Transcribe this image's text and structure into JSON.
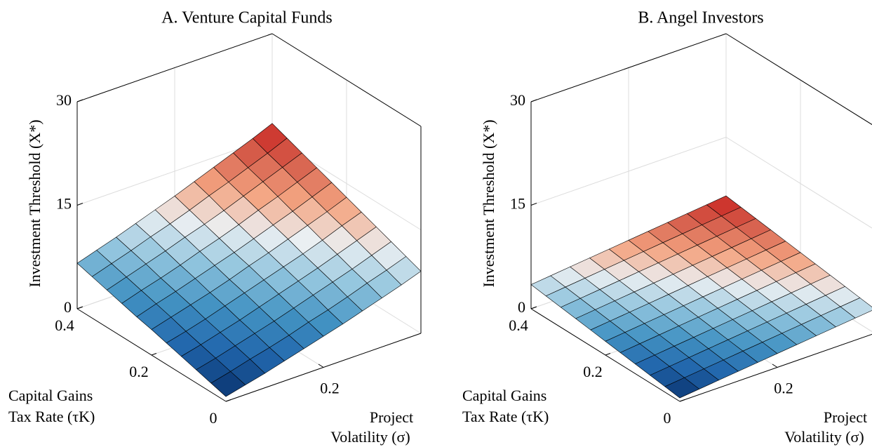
{
  "chart_data": [
    {
      "type": "surface",
      "title": "A. Venture Capital Funds",
      "xlabel": [
        "Project",
        "Volatility (σ)"
      ],
      "ylabel": [
        "Capital Gains",
        "Tax Rate (τK)"
      ],
      "zlabel": "Investment Threshold (X*)",
      "x": [
        0,
        0.04,
        0.08,
        0.12,
        0.16,
        0.2,
        0.24,
        0.28,
        0.32,
        0.36,
        0.4
      ],
      "y": [
        0,
        0.04,
        0.08,
        0.12,
        0.16,
        0.2,
        0.24,
        0.28,
        0.32,
        0.36,
        0.4
      ],
      "z": [
        [
          0.7,
          1.4,
          2.1,
          2.9,
          3.7,
          4.5,
          5.3,
          6.2,
          7.1,
          8.0,
          9.0
        ],
        [
          1.3,
          2.0,
          2.8,
          3.5,
          4.3,
          5.2,
          6.0,
          6.9,
          7.9,
          8.8,
          9.8
        ],
        [
          1.9,
          2.6,
          3.4,
          4.2,
          5.0,
          5.9,
          6.8,
          7.7,
          8.6,
          9.6,
          10.6
        ],
        [
          2.5,
          3.2,
          4.0,
          4.8,
          5.7,
          6.6,
          7.5,
          8.4,
          9.4,
          10.4,
          11.4
        ],
        [
          3.1,
          3.8,
          4.6,
          5.5,
          6.4,
          7.3,
          8.2,
          9.1,
          10.1,
          11.2,
          12.2
        ],
        [
          3.7,
          4.5,
          5.3,
          6.1,
          7.0,
          8.0,
          8.9,
          9.9,
          10.9,
          11.9,
          13.0
        ],
        [
          4.2,
          5.1,
          5.9,
          6.8,
          7.7,
          8.6,
          9.6,
          10.6,
          11.6,
          12.7,
          13.8
        ],
        [
          4.8,
          5.7,
          6.5,
          7.4,
          8.4,
          9.3,
          10.3,
          11.4,
          12.4,
          13.5,
          14.6
        ],
        [
          5.4,
          6.3,
          7.2,
          8.1,
          9.1,
          10.0,
          11.0,
          12.1,
          13.2,
          14.3,
          15.4
        ],
        [
          6.0,
          6.9,
          7.8,
          8.8,
          9.7,
          10.7,
          11.8,
          12.8,
          13.9,
          15.0,
          16.2
        ],
        [
          6.6,
          7.5,
          8.4,
          9.4,
          10.4,
          11.4,
          12.5,
          13.6,
          14.7,
          15.8,
          17.0
        ]
      ],
      "xlim": [
        0,
        0.4
      ],
      "ylim": [
        0,
        0.4
      ],
      "zlim": [
        0,
        30
      ],
      "xticks": [
        0.2
      ],
      "yticks": [
        0,
        0.2,
        0.4
      ],
      "zticks": [
        0,
        15,
        30
      ],
      "grid": true,
      "colormap": [
        "#08306b",
        "#2166ac",
        "#4393c3",
        "#92c5de",
        "#ebeff2",
        "#f4a582",
        "#d6604d",
        "#c8201e"
      ]
    },
    {
      "type": "surface",
      "title": "B. Angel Investors",
      "xlabel": [
        "Project",
        "Volatility (σ)"
      ],
      "ylabel": [
        "Capital Gains",
        "Tax Rate (τK)"
      ],
      "zlabel": "Investment Threshold (X*)",
      "x": [
        0,
        0.04,
        0.08,
        0.12,
        0.16,
        0.2,
        0.24,
        0.28,
        0.32,
        0.36,
        0.4
      ],
      "y": [
        0,
        0.04,
        0.08,
        0.12,
        0.16,
        0.2,
        0.24,
        0.28,
        0.32,
        0.36,
        0.4
      ],
      "z": [
        [
          0.5,
          0.8,
          1.1,
          1.4,
          1.7,
          2.0,
          2.3,
          2.6,
          2.9,
          3.2,
          3.5
        ],
        [
          0.8,
          1.1,
          1.4,
          1.7,
          2.0,
          2.3,
          2.6,
          2.9,
          3.2,
          3.5,
          3.8
        ],
        [
          1.1,
          1.4,
          1.7,
          2.0,
          2.3,
          2.6,
          2.9,
          3.2,
          3.5,
          3.8,
          4.1
        ],
        [
          1.4,
          1.7,
          2.0,
          2.3,
          2.6,
          2.9,
          3.2,
          3.5,
          3.8,
          4.1,
          4.4
        ],
        [
          1.7,
          2.0,
          2.3,
          2.6,
          2.9,
          3.2,
          3.5,
          3.8,
          4.1,
          4.4,
          4.7
        ],
        [
          2.0,
          2.3,
          2.6,
          2.9,
          3.2,
          3.5,
          3.8,
          4.1,
          4.4,
          4.7,
          5.0
        ],
        [
          2.3,
          2.6,
          2.9,
          3.2,
          3.5,
          3.8,
          4.1,
          4.4,
          4.7,
          5.0,
          5.3
        ],
        [
          2.6,
          2.9,
          3.2,
          3.5,
          3.8,
          4.1,
          4.4,
          4.7,
          5.0,
          5.3,
          5.6
        ],
        [
          2.9,
          3.2,
          3.5,
          3.8,
          4.1,
          4.4,
          4.7,
          5.0,
          5.3,
          5.6,
          5.9
        ],
        [
          3.2,
          3.5,
          3.8,
          4.1,
          4.4,
          4.7,
          5.0,
          5.3,
          5.6,
          5.9,
          6.2
        ],
        [
          3.5,
          3.8,
          4.1,
          4.4,
          4.7,
          5.0,
          5.3,
          5.6,
          5.9,
          6.2,
          6.5
        ]
      ],
      "xlim": [
        0,
        0.4
      ],
      "ylim": [
        0,
        0.4
      ],
      "zlim": [
        0,
        30
      ],
      "xticks": [
        0.2
      ],
      "yticks": [
        0,
        0.2,
        0.4
      ],
      "zticks": [
        0,
        15,
        30
      ],
      "grid": true,
      "colormap": [
        "#08306b",
        "#2166ac",
        "#4393c3",
        "#92c5de",
        "#ebeff2",
        "#f4a582",
        "#d6604d",
        "#c8201e"
      ]
    }
  ]
}
